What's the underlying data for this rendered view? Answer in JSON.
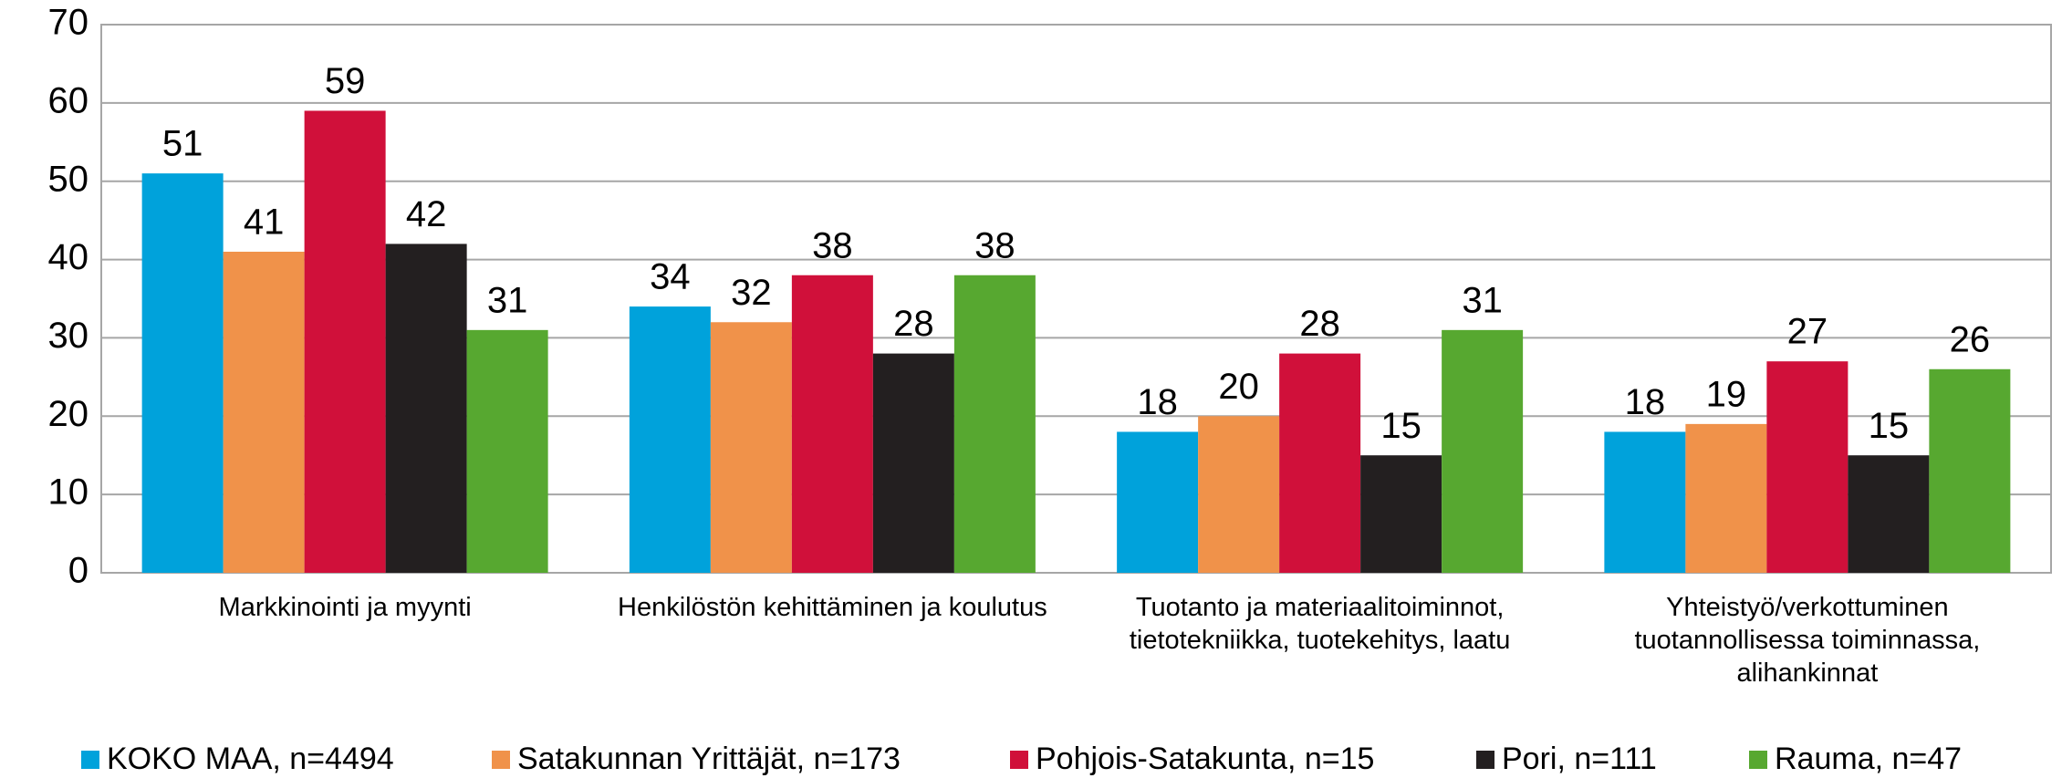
{
  "chart_data": {
    "type": "bar",
    "categories": [
      "Markkinointi ja myynti",
      "Henkilöstön kehittäminen ja koulutus",
      "Tuotanto ja materiaalitoiminnot,\ntietotekniikka, tuotekehitys, laatu",
      "Yhteistyö/verkottuminen\ntuotannollisessa toiminnassa,\nalihankinnat"
    ],
    "series": [
      {
        "name": "KOKO MAA, n=4494",
        "color": "#00a2db",
        "values": [
          51,
          34,
          18,
          18
        ]
      },
      {
        "name": "Satakunnan Yrittäjät, n=173",
        "color": "#f0924a",
        "values": [
          41,
          32,
          20,
          19
        ]
      },
      {
        "name": "Pohjois-Satakunta, n=15",
        "color": "#d0103a",
        "values": [
          59,
          38,
          28,
          27
        ]
      },
      {
        "name": "Pori, n=111",
        "color": "#231f20",
        "values": [
          42,
          28,
          15,
          15
        ]
      },
      {
        "name": "Rauma, n=47",
        "color": "#57a830",
        "values": [
          31,
          38,
          31,
          26
        ]
      }
    ],
    "ylim": [
      0,
      70
    ],
    "yticks": [
      0,
      10,
      20,
      30,
      40,
      50,
      60,
      70
    ],
    "grid": true,
    "legend": "bottom"
  }
}
